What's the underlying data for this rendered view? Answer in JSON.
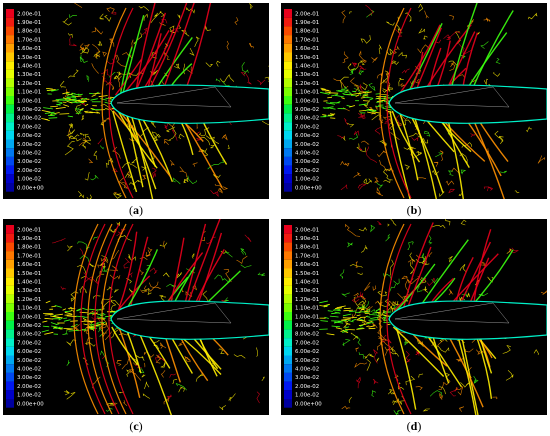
{
  "figure": {
    "panels": [
      {
        "id": "a",
        "label": "a"
      },
      {
        "id": "b",
        "label": "b"
      },
      {
        "id": "c",
        "label": "c"
      },
      {
        "id": "d",
        "label": "d"
      }
    ],
    "colorbar": {
      "labels": [
        "2.00e-01",
        "1.90e-01",
        "1.80e-01",
        "1.70e-01",
        "1.60e-01",
        "1.50e-01",
        "1.40e-01",
        "1.30e-01",
        "1.20e-01",
        "1.10e-01",
        "1.00e-01",
        "9.00e-02",
        "8.00e-02",
        "7.00e-02",
        "6.00e-02",
        "5.00e-02",
        "4.00e-02",
        "3.00e-02",
        "2.00e-02",
        "1.00e-02",
        "0.00e+00"
      ],
      "colors": [
        "#e8001c",
        "#f01a10",
        "#fa4a00",
        "#ff7800",
        "#ffa000",
        "#ffc800",
        "#ffee00",
        "#e6ff00",
        "#b4ff00",
        "#7cff00",
        "#3cff10",
        "#00f048",
        "#00f08c",
        "#00f0c8",
        "#00d8f0",
        "#00a8f0",
        "#0078f0",
        "#0048f0",
        "#0018f0",
        "#0000c8",
        "#0000a0"
      ]
    },
    "contour_colors": {
      "red": "#e8001c",
      "orange": "#ff9000",
      "yellow": "#ffee00",
      "green": "#3cff10",
      "cyan": "#00f0c8",
      "white": "#ffffff"
    }
  }
}
